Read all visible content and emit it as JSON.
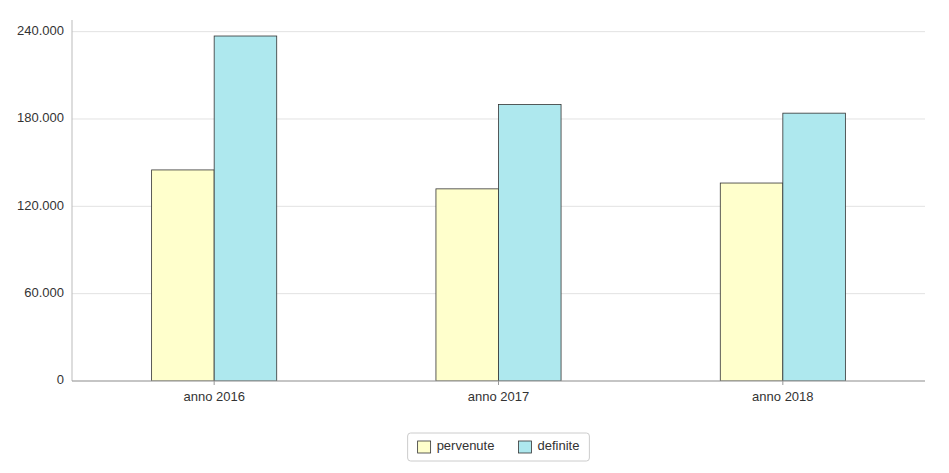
{
  "chart_data": {
    "type": "bar",
    "categories": [
      "anno 2016",
      "anno 2017",
      "anno 2018"
    ],
    "series": [
      {
        "name": "pervenute",
        "color": "#ffffcc",
        "values": [
          145000,
          132000,
          136000
        ]
      },
      {
        "name": "definite",
        "color": "#aee8ee",
        "values": [
          237000,
          190000,
          184000
        ]
      }
    ],
    "ylim": [
      0,
      248000
    ],
    "yticks": [
      0,
      {
        "value": 60000,
        "label": "60.000"
      },
      {
        "value": 120000,
        "label": "120.000"
      },
      {
        "value": 180000,
        "label": "180.000"
      },
      {
        "value": 240000,
        "label": "240.000"
      }
    ],
    "grid": true,
    "legend": "bottom"
  }
}
